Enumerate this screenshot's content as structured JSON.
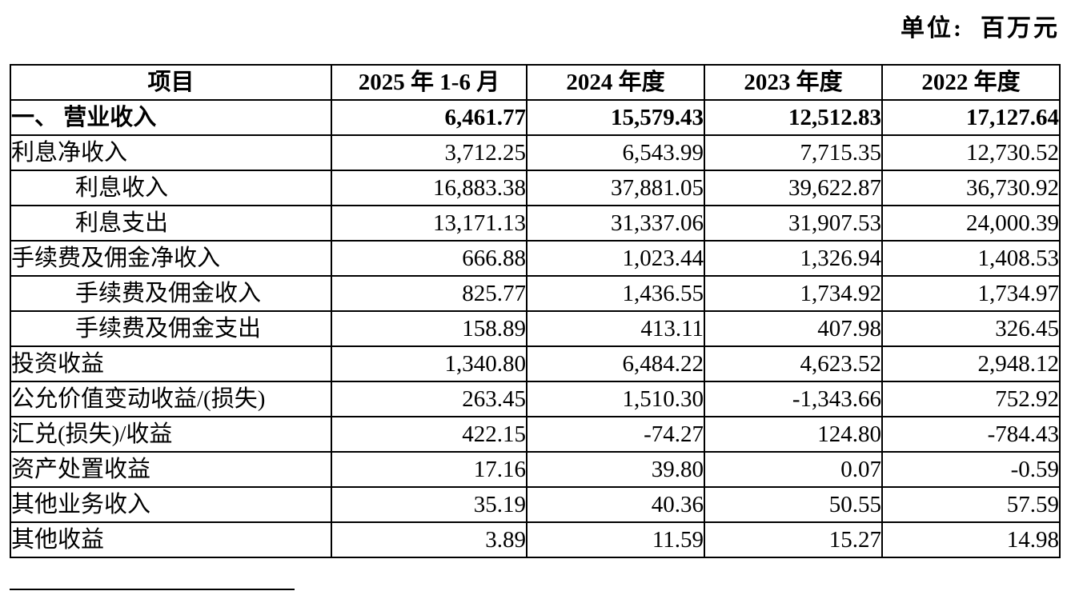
{
  "unit_note": "单位:  百万元",
  "table": {
    "headers": {
      "item": "项目",
      "period_2025h1": "2025 年 1-6 月",
      "period_2024": "2024 年度",
      "period_2023": "2023 年度",
      "period_2022": "2022 年度"
    },
    "rows": [
      {
        "label": "一、 营业收入",
        "values": [
          "6,461.77",
          "15,579.43",
          "12,512.83",
          "17,127.64"
        ]
      },
      {
        "label": "利息净收入",
        "values": [
          "3,712.25",
          "6,543.99",
          "7,715.35",
          "12,730.52"
        ]
      },
      {
        "label": "利息收入",
        "values": [
          "16,883.38",
          "37,881.05",
          "39,622.87",
          "36,730.92"
        ]
      },
      {
        "label": "利息支出",
        "values": [
          "13,171.13",
          "31,337.06",
          "31,907.53",
          "24,000.39"
        ]
      },
      {
        "label": "手续费及佣金净收入",
        "values": [
          "666.88",
          "1,023.44",
          "1,326.94",
          "1,408.53"
        ]
      },
      {
        "label": "手续费及佣金收入",
        "values": [
          "825.77",
          "1,436.55",
          "1,734.92",
          "1,734.97"
        ]
      },
      {
        "label": "手续费及佣金支出",
        "values": [
          "158.89",
          "413.11",
          "407.98",
          "326.45"
        ]
      },
      {
        "label": "投资收益",
        "values": [
          "1,340.80",
          "6,484.22",
          "4,623.52",
          "2,948.12"
        ]
      },
      {
        "label": "公允价值变动收益/(损失)",
        "values": [
          "263.45",
          "1,510.30",
          "-1,343.66",
          "752.92"
        ]
      },
      {
        "label": "汇兑(损失)/收益",
        "values": [
          "422.15",
          "-74.27",
          "124.80",
          "-784.43"
        ]
      },
      {
        "label": "资产处置收益",
        "values": [
          "17.16",
          "39.80",
          "0.07",
          "-0.59"
        ]
      },
      {
        "label": "其他业务收入",
        "values": [
          "35.19",
          "40.36",
          "50.55",
          "57.59"
        ]
      },
      {
        "label": "其他收益",
        "values": [
          "3.89",
          "11.59",
          "15.27",
          "14.98"
        ]
      }
    ]
  }
}
